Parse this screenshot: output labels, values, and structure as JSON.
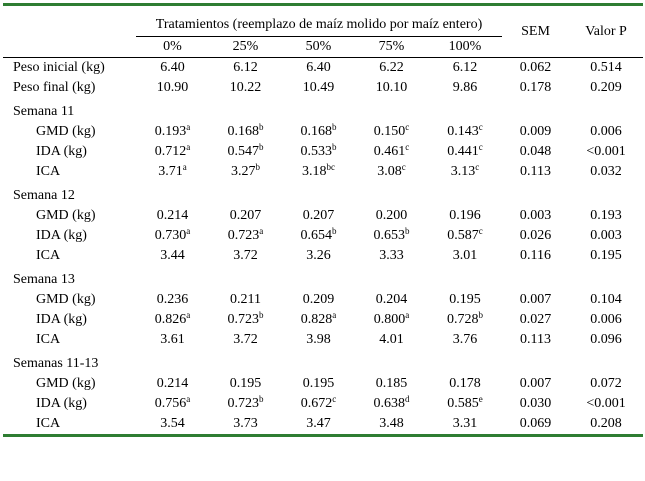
{
  "header": {
    "group_title": "Tratamientos (reemplazo de maíz molido por maíz entero)",
    "levels": [
      "0%",
      "25%",
      "50%",
      "75%",
      "100%"
    ],
    "sem": "SEM",
    "pvalue": "Valor P"
  },
  "rows": [
    {
      "type": "data",
      "indent": false,
      "label": "Peso inicial (kg)",
      "values": [
        [
          "6.40",
          ""
        ],
        [
          "6.12",
          ""
        ],
        [
          "6.40",
          ""
        ],
        [
          "6.22",
          ""
        ],
        [
          "6.12",
          ""
        ]
      ],
      "sem": "0.062",
      "p": "0.514"
    },
    {
      "type": "data",
      "indent": false,
      "label": "Peso final (kg)",
      "values": [
        [
          "10.90",
          ""
        ],
        [
          "10.22",
          ""
        ],
        [
          "10.49",
          ""
        ],
        [
          "10.10",
          ""
        ],
        [
          "9.86",
          ""
        ]
      ],
      "sem": "0.178",
      "p": "0.209"
    },
    {
      "type": "section",
      "label": "Semana 11"
    },
    {
      "type": "data",
      "indent": true,
      "label": "GMD (kg)",
      "values": [
        [
          "0.193",
          "a"
        ],
        [
          "0.168",
          "b"
        ],
        [
          "0.168",
          "b"
        ],
        [
          "0.150",
          "c"
        ],
        [
          "0.143",
          "c"
        ]
      ],
      "sem": "0.009",
      "p": "0.006"
    },
    {
      "type": "data",
      "indent": true,
      "label": "IDA (kg)",
      "values": [
        [
          "0.712",
          "a"
        ],
        [
          "0.547",
          "b"
        ],
        [
          "0.533",
          "b"
        ],
        [
          "0.461",
          "c"
        ],
        [
          "0.441",
          "c"
        ]
      ],
      "sem": "0.048",
      "p": "<0.001"
    },
    {
      "type": "data",
      "indent": true,
      "label": "ICA",
      "values": [
        [
          "3.71",
          "a"
        ],
        [
          "3.27",
          "b"
        ],
        [
          "3.18",
          "bc"
        ],
        [
          "3.08",
          "c"
        ],
        [
          "3.13",
          "c"
        ]
      ],
      "sem": "0.113",
      "p": "0.032"
    },
    {
      "type": "section",
      "label": "Semana 12"
    },
    {
      "type": "data",
      "indent": true,
      "label": "GMD (kg)",
      "values": [
        [
          "0.214",
          ""
        ],
        [
          "0.207",
          ""
        ],
        [
          "0.207",
          ""
        ],
        [
          "0.200",
          ""
        ],
        [
          "0.196",
          ""
        ]
      ],
      "sem": "0.003",
      "p": "0.193"
    },
    {
      "type": "data",
      "indent": true,
      "label": "IDA (kg)",
      "values": [
        [
          "0.730",
          "a"
        ],
        [
          "0.723",
          "a"
        ],
        [
          "0.654",
          "b"
        ],
        [
          "0.653",
          "b"
        ],
        [
          "0.587",
          "c"
        ]
      ],
      "sem": "0.026",
      "p": "0.003"
    },
    {
      "type": "data",
      "indent": true,
      "label": "ICA",
      "values": [
        [
          "3.44",
          ""
        ],
        [
          "3.72",
          ""
        ],
        [
          "3.26",
          ""
        ],
        [
          "3.33",
          ""
        ],
        [
          "3.01",
          ""
        ]
      ],
      "sem": "0.116",
      "p": "0.195"
    },
    {
      "type": "section",
      "label": "Semana 13"
    },
    {
      "type": "data",
      "indent": true,
      "label": "GMD (kg)",
      "values": [
        [
          "0.236",
          ""
        ],
        [
          "0.211",
          ""
        ],
        [
          "0.209",
          ""
        ],
        [
          "0.204",
          ""
        ],
        [
          "0.195",
          ""
        ]
      ],
      "sem": "0.007",
      "p": "0.104"
    },
    {
      "type": "data",
      "indent": true,
      "label": "IDA (kg)",
      "values": [
        [
          "0.826",
          "a"
        ],
        [
          "0.723",
          "b"
        ],
        [
          "0.828",
          "a"
        ],
        [
          "0.800",
          "a"
        ],
        [
          "0.728",
          "b"
        ]
      ],
      "sem": "0.027",
      "p": "0.006"
    },
    {
      "type": "data",
      "indent": true,
      "label": "ICA",
      "values": [
        [
          "3.61",
          ""
        ],
        [
          "3.72",
          ""
        ],
        [
          "3.98",
          ""
        ],
        [
          "4.01",
          ""
        ],
        [
          "3.76",
          ""
        ]
      ],
      "sem": "0.113",
      "p": "0.096"
    },
    {
      "type": "section",
      "label": "Semanas 11-13"
    },
    {
      "type": "data",
      "indent": true,
      "label": "GMD (kg)",
      "values": [
        [
          "0.214",
          ""
        ],
        [
          "0.195",
          ""
        ],
        [
          "0.195",
          ""
        ],
        [
          "0.185",
          ""
        ],
        [
          "0.178",
          ""
        ]
      ],
      "sem": "0.007",
      "p": "0.072"
    },
    {
      "type": "data",
      "indent": true,
      "label": "IDA (kg)",
      "values": [
        [
          "0.756",
          "a"
        ],
        [
          "0.723",
          "b"
        ],
        [
          "0.672",
          "c"
        ],
        [
          "0.638",
          "d"
        ],
        [
          "0.585",
          "e"
        ]
      ],
      "sem": "0.030",
      "p": "<0.001"
    },
    {
      "type": "data",
      "indent": true,
      "label": "ICA",
      "values": [
        [
          "3.54",
          ""
        ],
        [
          "3.73",
          ""
        ],
        [
          "3.47",
          ""
        ],
        [
          "3.48",
          ""
        ],
        [
          "3.31",
          ""
        ]
      ],
      "sem": "0.069",
      "p": "0.208"
    }
  ]
}
